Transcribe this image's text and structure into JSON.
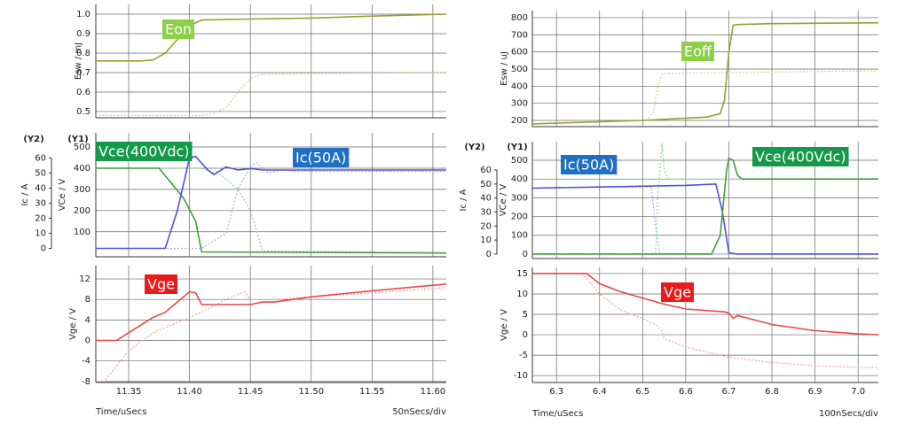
{
  "chart_data": [
    {
      "type": "line",
      "y_label": "Esw / mJ",
      "xlim": [
        11.323,
        11.611
      ],
      "ylim": [
        0.468,
        1.05
      ],
      "yticks": [
        0.5,
        0.6,
        0.7,
        0.8,
        0.9,
        {
          "value": 1.0,
          "label": "1.0"
        }
      ],
      "series": [
        {
          "name": "Eon",
          "label_color": "#8ccf48",
          "color": "#9d9d2c",
          "x": [
            11.323,
            11.36,
            11.37,
            11.38,
            11.39,
            11.4,
            11.41,
            11.45,
            11.5,
            11.55,
            11.611
          ],
          "values": [
            0.76,
            0.76,
            0.765,
            0.8,
            0.87,
            0.94,
            0.97,
            0.975,
            0.98,
            0.99,
            1.0
          ]
        },
        {
          "color": "#c9d48f",
          "dash": true,
          "x": [
            11.323,
            11.41,
            11.42,
            11.43,
            11.44,
            11.45,
            11.46,
            11.5,
            11.611
          ],
          "values": [
            0.48,
            0.48,
            0.49,
            0.52,
            0.6,
            0.67,
            0.69,
            0.695,
            0.7
          ]
        }
      ]
    },
    {
      "type": "line",
      "y_label": "VCe / V",
      "y2_label": "Ic / A",
      "y_tag": "(Y1)",
      "y2_tag": "(Y2)",
      "xlim": [
        11.323,
        11.611
      ],
      "ylim": [
        -18,
        567
      ],
      "yticks": [
        100,
        200,
        300,
        400,
        500
      ],
      "y2lim": [
        -5.6,
        76.7
      ],
      "y2ticks": [
        0,
        10,
        20,
        30,
        40,
        50,
        60
      ],
      "series": [
        {
          "name": "Vce(400Vdc)",
          "label_color": "#14994a",
          "color": "#3f9f3f",
          "x": [
            11.323,
            11.375,
            11.385,
            11.395,
            11.405,
            11.41,
            11.611
          ],
          "values": [
            400,
            400,
            330,
            260,
            150,
            5,
            0
          ]
        },
        {
          "name": "Ic(50A)",
          "label_color": "#1f6fc2",
          "color": "#5050e0",
          "axis": "y2",
          "x": [
            11.323,
            11.38,
            11.39,
            11.4,
            11.405,
            11.415,
            11.42,
            11.43,
            11.44,
            11.45,
            11.46,
            11.611
          ],
          "values": [
            0,
            0,
            25,
            60,
            61,
            52,
            49,
            54,
            52,
            53,
            52,
            52
          ]
        },
        {
          "color": "#a8a8f2",
          "dash": true,
          "axis": "y2",
          "x": [
            11.323,
            11.41,
            11.43,
            11.44,
            11.45,
            11.455,
            11.465,
            11.475,
            11.49,
            11.611
          ],
          "values": [
            0,
            0,
            10,
            40,
            54,
            57,
            50,
            52,
            51,
            51
          ]
        },
        {
          "color": "#92d092",
          "dash": true,
          "x": [
            11.323,
            11.41,
            11.425,
            11.44,
            11.45,
            11.46,
            11.611
          ],
          "values": [
            400,
            400,
            370,
            300,
            200,
            10,
            0
          ]
        }
      ]
    },
    {
      "type": "line",
      "y_label": "Vge / V",
      "x_label": "Time/uSecs",
      "x_scale": "50nSecs/div",
      "xlim": [
        11.323,
        11.611
      ],
      "ylim": [
        -8.2,
        14.6
      ],
      "yticks": [
        -8,
        -4,
        0,
        4,
        8,
        12
      ],
      "xticks": [
        11.35,
        {
          "value": 11.4,
          "label": "11.40"
        },
        11.45,
        {
          "value": 11.5,
          "label": "11.50"
        },
        11.55,
        {
          "value": 11.6,
          "label": "11.60"
        }
      ],
      "series": [
        {
          "name": "Vge",
          "label_color": "#e81a1a",
          "color": "#e84848",
          "x": [
            11.323,
            11.34,
            11.35,
            11.36,
            11.37,
            11.38,
            11.39,
            11.4,
            11.405,
            11.41,
            11.45,
            11.46,
            11.47,
            11.5,
            11.55,
            11.611
          ],
          "values": [
            0,
            0,
            1.5,
            3,
            4.5,
            5.5,
            7.5,
            9.5,
            9.3,
            7,
            7,
            7.5,
            7.5,
            8.5,
            9.7,
            11
          ]
        },
        {
          "color": "#f4a2a2",
          "dash": true,
          "x": [
            11.323,
            11.33,
            11.35,
            11.37,
            11.39,
            11.41,
            11.43,
            11.445,
            11.45,
            11.47,
            11.5,
            11.55,
            11.611
          ],
          "values": [
            -8,
            -8,
            -2,
            1.5,
            3.5,
            5.5,
            8,
            9.5,
            8,
            8,
            8.5,
            9.3,
            10.3
          ]
        }
      ]
    },
    {
      "type": "line",
      "y_label": "Esw / uJ",
      "xlim": [
        6.244,
        7.047
      ],
      "ylim": [
        164,
        841
      ],
      "yticks": [
        200,
        300,
        400,
        500,
        600,
        700,
        800
      ],
      "series": [
        {
          "name": "Eoff",
          "label_color": "#8ccf48",
          "color": "#9d9d2c",
          "x": [
            6.244,
            6.5,
            6.65,
            6.68,
            6.69,
            6.7,
            6.71,
            6.72,
            6.8,
            7.047
          ],
          "values": [
            180,
            200,
            220,
            240,
            320,
            600,
            755,
            760,
            765,
            770
          ]
        },
        {
          "color": "#c9d48f",
          "dash": true,
          "x": [
            6.244,
            6.51,
            6.525,
            6.535,
            6.545,
            6.56,
            7.047
          ],
          "values": [
            180,
            200,
            250,
            400,
            470,
            475,
            490
          ]
        }
      ]
    },
    {
      "type": "line",
      "y_label": "VCe / V",
      "y2_label": "Ic / A",
      "y_tag": "(Y1)",
      "y2_tag": "(Y2)",
      "xlim": [
        6.244,
        7.047
      ],
      "ylim": [
        -24,
        599
      ],
      "yticks": [
        0,
        100,
        200,
        300,
        400,
        500
      ],
      "y2lim": [
        -3.2,
        80.2
      ],
      "y2ticks": [
        0,
        10,
        20,
        30,
        40,
        50,
        60
      ],
      "series": [
        {
          "name": "Ic(50A)",
          "label_color": "#1f6fc2",
          "color": "#5050e0",
          "axis": "y2",
          "x": [
            6.244,
            6.6,
            6.67,
            6.685,
            6.7,
            6.72,
            7.047
          ],
          "values": [
            47,
            49,
            50,
            30,
            1,
            0,
            0
          ]
        },
        {
          "name": "Vce(400Vdc)",
          "label_color": "#14994a",
          "color": "#3f9f3f",
          "x": [
            6.244,
            6.66,
            6.68,
            6.695,
            6.7,
            6.71,
            6.72,
            6.73,
            7.047
          ],
          "values": [
            0,
            0,
            100,
            450,
            510,
            500,
            420,
            400,
            400
          ]
        },
        {
          "color": "#a8a8f2",
          "dash": true,
          "axis": "y2",
          "x": [
            6.244,
            6.52,
            6.53,
            6.54,
            7.047
          ],
          "values": [
            47,
            48,
            20,
            0,
            0
          ]
        },
        {
          "color": "#92d092",
          "dash": true,
          "x": [
            6.244,
            6.53,
            6.535,
            6.545,
            6.55,
            6.56,
            7.047
          ],
          "values": [
            0,
            0,
            300,
            590,
            450,
            400,
            400
          ]
        }
      ]
    },
    {
      "type": "line",
      "y_label": "Vge / V",
      "x_label": "Time/uSecs",
      "x_scale": "100nSecs/div",
      "xlim": [
        6.244,
        7.047
      ],
      "ylim": [
        -11.7,
        16.5
      ],
      "yticks": [
        -10,
        -5,
        0,
        5,
        10,
        15
      ],
      "xticks": [
        6.3,
        6.4,
        6.5,
        6.6,
        6.7,
        6.8,
        6.9,
        {
          "value": 7,
          "label": "7.0"
        }
      ],
      "series": [
        {
          "name": "Vge",
          "label_color": "#e81a1a",
          "color": "#e84848",
          "x": [
            6.244,
            6.37,
            6.4,
            6.45,
            6.5,
            6.55,
            6.6,
            6.69,
            6.7,
            6.71,
            6.72,
            6.8,
            6.9,
            7.0,
            7.047
          ],
          "values": [
            15,
            15,
            12.5,
            10.5,
            9,
            7.5,
            6.3,
            5.6,
            5.3,
            4,
            4.7,
            2.5,
            1,
            0.2,
            0
          ]
        },
        {
          "color": "#f4a2a2",
          "dash": true,
          "x": [
            6.244,
            6.36,
            6.4,
            6.45,
            6.5,
            6.53,
            6.545,
            6.55,
            6.6,
            6.7,
            6.8,
            6.9,
            7.0,
            7.047
          ],
          "values": [
            15,
            15,
            10,
            6,
            4,
            2.5,
            1,
            -1,
            -3,
            -5.5,
            -6.8,
            -7.6,
            -8,
            -8.1
          ]
        }
      ]
    }
  ]
}
